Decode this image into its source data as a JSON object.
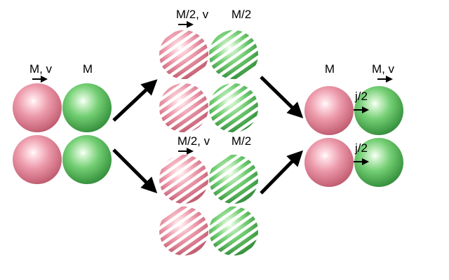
{
  "colors": {
    "pink": "#e98a9c",
    "green": "#6cc86c",
    "arrow": "#000000",
    "background": "#ffffff"
  },
  "left": {
    "pink_label": "M, v",
    "green_label": "M"
  },
  "middle_top": {
    "pink_label": "M/2, v",
    "green_label": "M/2"
  },
  "middle_bottom": {
    "pink_label": "M/2, v",
    "green_label": "M/2"
  },
  "right": {
    "pink_label": "M",
    "green_label": "M, v",
    "transfer_top": "j/2",
    "transfer_bottom": "j/2"
  }
}
